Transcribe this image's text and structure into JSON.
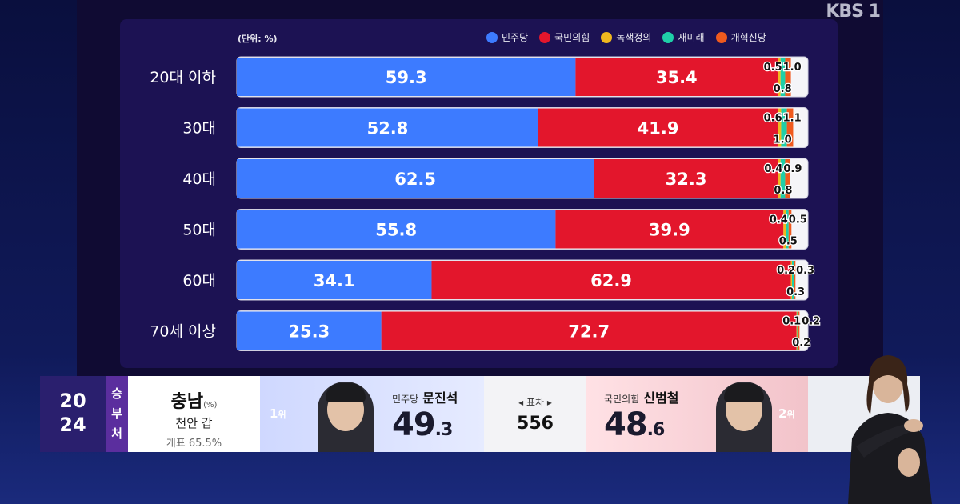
{
  "broadcaster": "KBS 1",
  "chart_data": {
    "type": "bar",
    "orientation": "horizontal-stacked-percent",
    "unit_label": "(단위: %)",
    "categories": [
      "20대 이하",
      "30대",
      "40대",
      "50대",
      "60대",
      "70세 이상"
    ],
    "series": [
      {
        "name": "민주당",
        "color": "#3d7bff",
        "values": [
          59.3,
          52.8,
          62.5,
          55.8,
          34.1,
          25.3
        ]
      },
      {
        "name": "국민의힘",
        "color": "#e3162c",
        "values": [
          35.4,
          41.9,
          32.3,
          39.9,
          62.9,
          72.7
        ]
      },
      {
        "name": "녹색정의",
        "color": "#f0b81e",
        "values": [
          0.5,
          0.6,
          0.4,
          0.4,
          0.2,
          0.1
        ]
      },
      {
        "name": "새미래",
        "color": "#1fcfa8",
        "values": [
          0.8,
          1.0,
          0.8,
          0.5,
          0.3,
          0.2
        ]
      },
      {
        "name": "개혁신당",
        "color": "#f05a1e",
        "values": [
          1.0,
          1.1,
          0.9,
          0.5,
          0.3,
          0.2
        ]
      }
    ],
    "xlim": [
      0,
      100
    ],
    "legend_position": "top-right"
  },
  "lower_third": {
    "year": [
      "20",
      "24"
    ],
    "status": [
      "승",
      "부",
      "처"
    ],
    "region": "충남",
    "region_unit": "(%)",
    "district": "천안 갑",
    "count_progress": "개표 65.5%",
    "candidate1": {
      "rank": "1",
      "rank_suffix": "위",
      "party": "민주당",
      "name": "문진석",
      "pct_int": "49",
      "pct_dec": ".3"
    },
    "margin_label": "표차",
    "margin_value": "556",
    "candidate2": {
      "rank": "2",
      "rank_suffix": "위",
      "party": "국민의힘",
      "name": "신범철",
      "pct_int": "48",
      "pct_dec": ".6"
    }
  }
}
